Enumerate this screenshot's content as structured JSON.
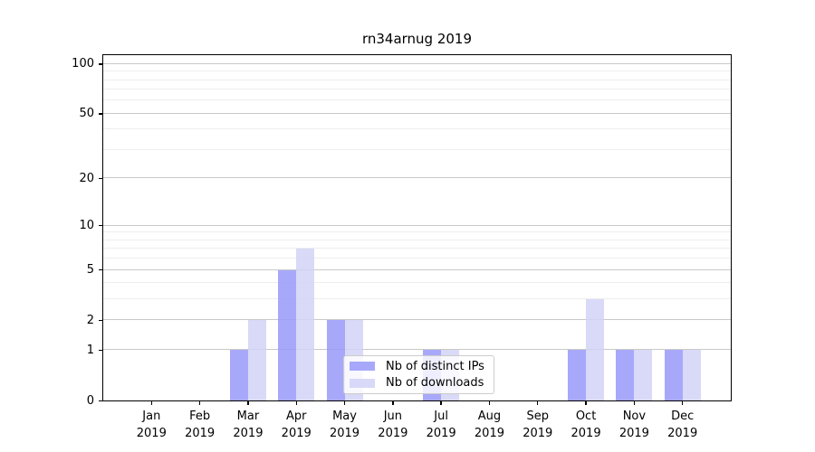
{
  "figure": {
    "title": "rn34arnug 2019"
  },
  "chart_data": {
    "type": "bar",
    "title": "rn34arnug 2019",
    "year_label": "2019",
    "categories": [
      "Jan",
      "Feb",
      "Mar",
      "Apr",
      "May",
      "Jun",
      "Jul",
      "Aug",
      "Sep",
      "Oct",
      "Nov",
      "Dec"
    ],
    "series": [
      {
        "name": "Nb of distinct IPs",
        "color": "#9999fa",
        "alpha": 0.85,
        "values": [
          0,
          0,
          1,
          5,
          2,
          0,
          1,
          0,
          0,
          1,
          1,
          1
        ]
      },
      {
        "name": "Nb of downloads",
        "color": "#d2d2f7",
        "alpha": 0.85,
        "values": [
          0,
          0,
          2,
          7,
          2,
          0,
          1,
          0,
          0,
          3,
          1,
          1
        ]
      }
    ],
    "xlabel": "",
    "ylabel": "",
    "scale": "log1p",
    "ylim": [
      0,
      113
    ],
    "yticks": [
      0,
      1,
      2,
      5,
      10,
      20,
      50,
      100
    ],
    "minor_yticks": [
      3,
      4,
      6,
      7,
      8,
      9,
      30,
      40,
      60,
      70,
      80,
      90
    ],
    "grid": true,
    "legend_position": "lower center",
    "colors": {
      "major_grid": "#c9c9c9",
      "minor_grid": "#ededed",
      "spine": "#000000",
      "legend_border": "#cccccc"
    }
  }
}
